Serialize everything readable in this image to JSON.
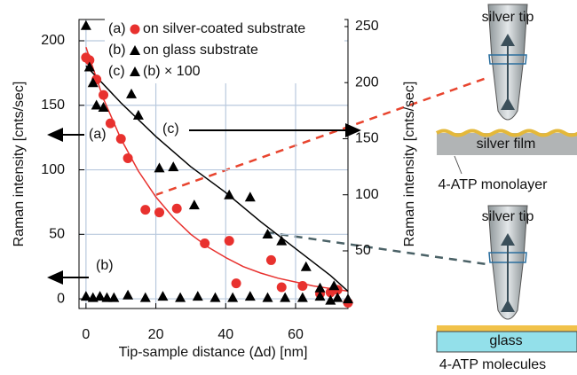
{
  "chart_data": {
    "type": "scatter",
    "xlabel": "Tip-sample distance (Δd) [nm]",
    "ylabel": "Raman intensity [cnts/sec]",
    "y2label": "Raman intensity [cnts/sec]",
    "xlim": [
      -2,
      75
    ],
    "xticks": [
      0,
      20,
      40,
      60
    ],
    "ylim": [
      -7.5,
      216.5
    ],
    "yticks": [
      0,
      50,
      100,
      150,
      200
    ],
    "y2lim": [
      -1.4,
      256.3
    ],
    "y2ticks": [
      50,
      100,
      150,
      200,
      250
    ],
    "grid": true,
    "series": [
      {
        "label": "(a)",
        "name": "on silver-coated substrate",
        "color": "#e8312e",
        "marker": "circle",
        "x": [
          0,
          1,
          3,
          5,
          7,
          10,
          12,
          17,
          21,
          26,
          34,
          41,
          43,
          53,
          56,
          62,
          67,
          70,
          72,
          75
        ],
        "values": [
          187,
          185,
          170,
          158,
          136,
          124,
          109,
          69,
          67,
          70,
          43,
          45,
          12,
          30,
          9,
          10,
          4,
          5,
          7,
          -3
        ]
      },
      {
        "label": "(b)",
        "name": "on glass substrate",
        "color": "#000000",
        "marker": "triangle",
        "x": [
          0,
          2,
          4,
          6,
          8,
          12,
          17,
          22,
          27,
          32,
          37,
          42,
          47,
          52,
          57,
          62,
          67,
          72,
          75
        ],
        "values": [
          2,
          1,
          2,
          1,
          1,
          3,
          1,
          2,
          1,
          2,
          1,
          1,
          2,
          1,
          1,
          1,
          2,
          1,
          0
        ]
      },
      {
        "label": "(c)",
        "name": "(b) × 100",
        "color": "#000000",
        "marker": "triangle",
        "axis": "y2",
        "x": [
          0,
          1,
          2,
          3,
          5,
          13,
          15,
          21,
          25,
          31,
          41,
          47,
          52,
          56,
          63,
          67,
          70,
          71
        ],
        "values": [
          251,
          214,
          200,
          180,
          178,
          190,
          171,
          124,
          125,
          91,
          100,
          98,
          65,
          59,
          36,
          17,
          6,
          19
        ]
      }
    ],
    "fits": [
      {
        "color": "#e8312e",
        "x": [
          0,
          5,
          10,
          15,
          20,
          25,
          30,
          35,
          40,
          45,
          50,
          55,
          60,
          65,
          70,
          75
        ],
        "values": [
          195,
          155,
          124,
          99,
          79,
          63,
          50,
          40,
          32,
          25,
          20,
          16,
          13,
          10,
          8,
          6
        ]
      },
      {
        "color": "#000000",
        "axis": "y2",
        "x": [
          0,
          10,
          20,
          30,
          40,
          50,
          60,
          70,
          75
        ],
        "values": [
          215,
          182,
          152,
          125,
          102,
          76,
          52,
          28,
          14
        ]
      }
    ],
    "annotations": [
      "(a)",
      "(b)",
      "(c)"
    ]
  },
  "diagram": {
    "top": {
      "tip": "silver tip",
      "substrate": "silver film",
      "layer": "4-ATP monolayer"
    },
    "bottom": {
      "tip": "silver tip",
      "substrate": "glass",
      "layer": "4-ATP molecules"
    }
  }
}
